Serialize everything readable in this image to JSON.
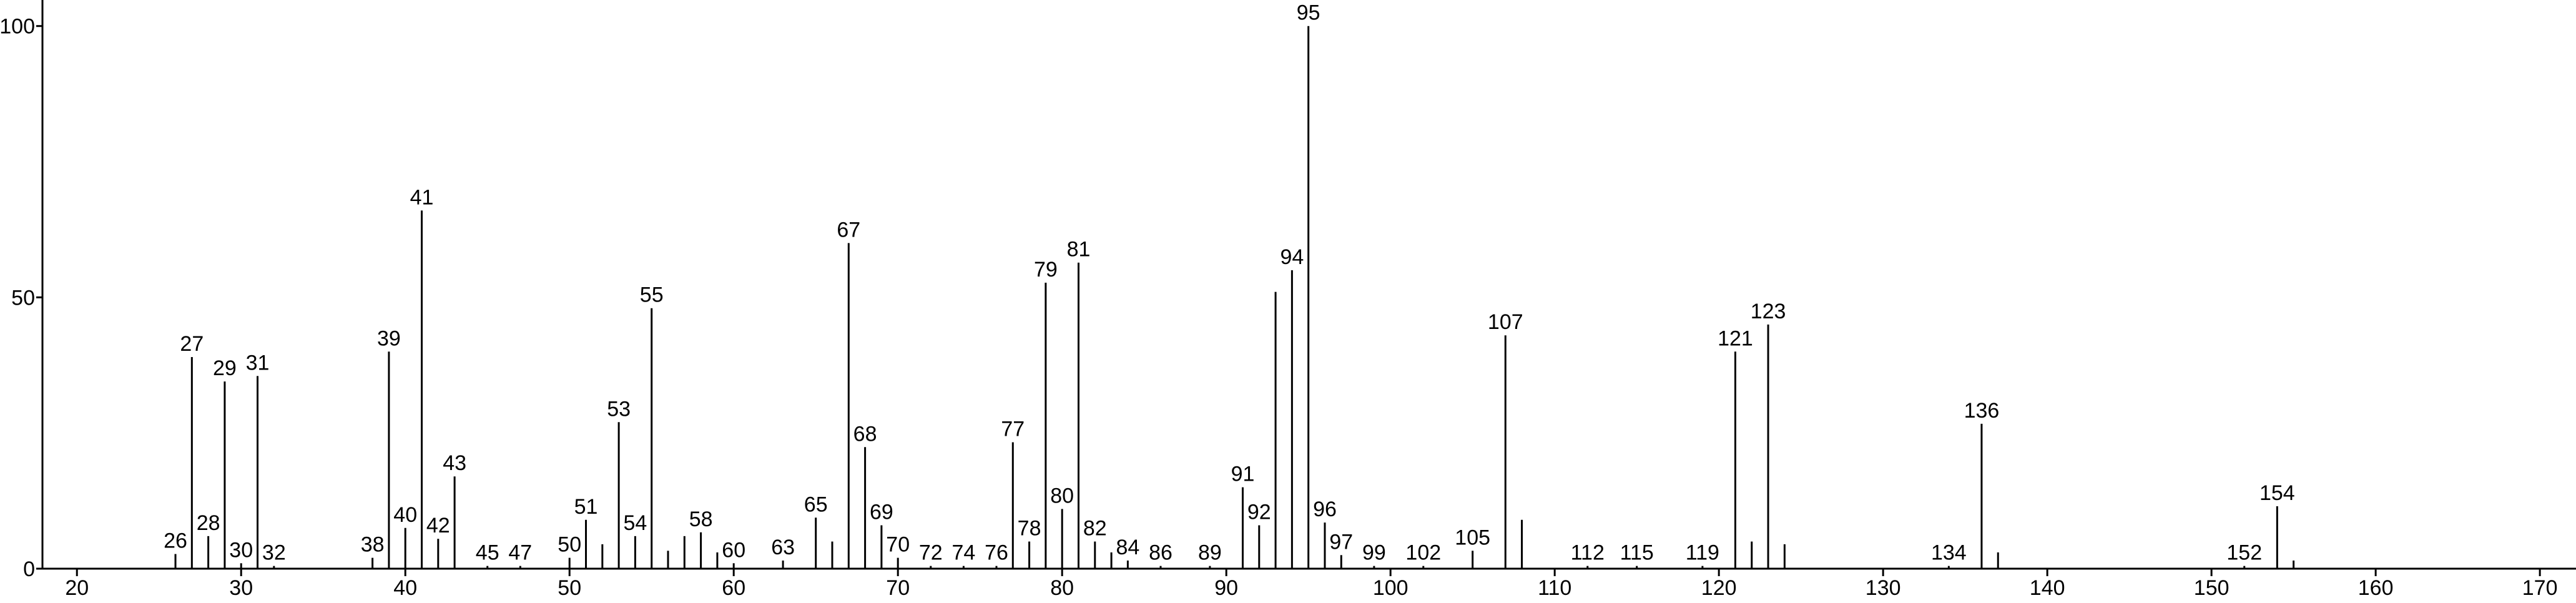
{
  "chart_data": {
    "type": "stem",
    "series": [
      {
        "x": [
          26,
          27,
          28,
          29,
          30,
          31,
          32,
          38,
          39,
          40,
          41,
          42,
          43,
          45,
          47,
          50,
          51,
          53,
          54,
          55,
          58,
          60,
          63,
          65,
          67,
          68,
          69,
          70,
          72,
          74,
          76,
          77,
          78,
          79,
          80,
          81,
          82,
          84,
          86,
          89,
          91,
          92,
          94,
          95,
          96,
          97,
          99,
          102,
          105,
          107,
          112,
          115,
          119,
          121,
          123,
          134,
          136,
          152,
          154
        ],
        "values": [
          2.7,
          39,
          6,
          34.5,
          1,
          35.5,
          0.5,
          2,
          40,
          7.5,
          66,
          5.5,
          17,
          0.5,
          0.5,
          2,
          9,
          27,
          6,
          48,
          6.7,
          1,
          1.5,
          9.4,
          60,
          22.4,
          8,
          2,
          0.5,
          0.5,
          0.5,
          23.3,
          5,
          52.7,
          11,
          56.4,
          5,
          1.5,
          0.5,
          0.5,
          15,
          8,
          55,
          100,
          8.5,
          2.5,
          0.5,
          0.5,
          3.3,
          43,
          0.5,
          0.5,
          0.5,
          40,
          45,
          0.5,
          26.7,
          0.5,
          11.5
        ],
        "color": "#000000",
        "show_labels": true
      },
      {
        "x": [
          52,
          56,
          57,
          59,
          66,
          83,
          93,
          108,
          122,
          124,
          137,
          155
        ],
        "values": [
          4.5,
          3.3,
          6,
          3,
          5,
          3,
          51,
          9,
          5,
          4.5,
          3,
          1.5
        ],
        "color": "#000000",
        "show_labels": false
      }
    ],
    "xlim": [
      17.9,
      172.2
    ],
    "ylim": [
      0,
      104.8
    ],
    "xticks": [
      20,
      30,
      40,
      50,
      60,
      70,
      80,
      90,
      100,
      110,
      120,
      130,
      140,
      150,
      160,
      170
    ],
    "yticks": [
      0,
      50,
      100
    ]
  }
}
